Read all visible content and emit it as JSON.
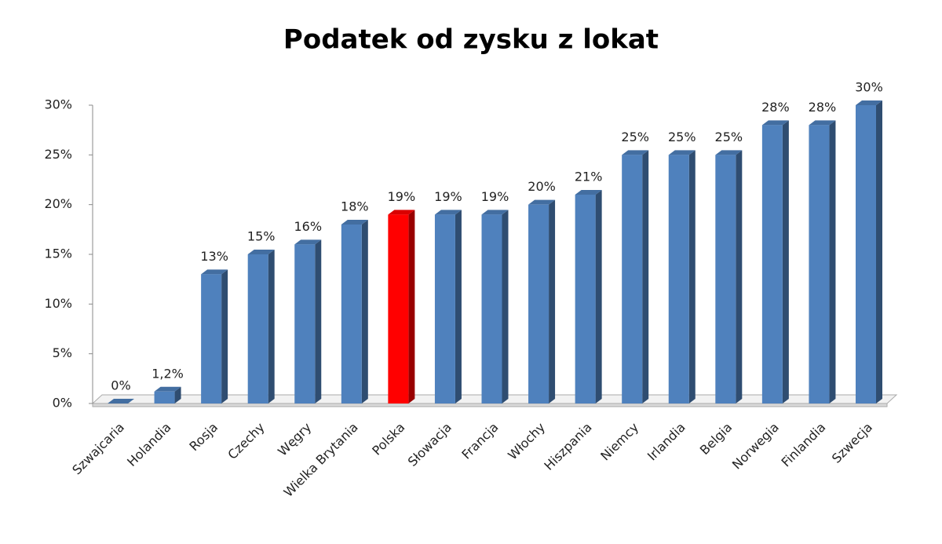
{
  "chart_data": {
    "type": "bar",
    "title": "Podatek od zysku z lokat",
    "categories": [
      "Szwajcaria",
      "Holandia",
      "Rosja",
      "Czechy",
      "Węgry",
      "Wielka Brytania",
      "Polska",
      "Słowacja",
      "Francja",
      "Włochy",
      "Hiszpania",
      "Niemcy",
      "Irlandia",
      "Belgia",
      "Norwegia",
      "Finlandia",
      "Szwecja"
    ],
    "values": [
      0,
      1.2,
      13,
      15,
      16,
      18,
      19,
      19,
      19,
      20,
      21,
      25,
      25,
      25,
      28,
      28,
      30
    ],
    "value_labels": [
      "0%",
      "1,2%",
      "13%",
      "15%",
      "16%",
      "18%",
      "19%",
      "19%",
      "19%",
      "20%",
      "21%",
      "25%",
      "25%",
      "25%",
      "28%",
      "28%",
      "30%"
    ],
    "colors": [
      "#4f81bd",
      "#4f81bd",
      "#4f81bd",
      "#4f81bd",
      "#4f81bd",
      "#4f81bd",
      "#ff0000",
      "#4f81bd",
      "#4f81bd",
      "#4f81bd",
      "#4f81bd",
      "#4f81bd",
      "#4f81bd",
      "#4f81bd",
      "#4f81bd",
      "#4f81bd",
      "#4f81bd"
    ],
    "ylim": [
      0,
      30
    ],
    "yticks": [
      {
        "value": 0,
        "label": "0%"
      },
      {
        "value": 5,
        "label": "5%"
      },
      {
        "value": 10,
        "label": "10%"
      },
      {
        "value": 15,
        "label": "15%"
      },
      {
        "value": 20,
        "label": "20%"
      },
      {
        "value": 25,
        "label": "25%"
      },
      {
        "value": 30,
        "label": "30%"
      }
    ],
    "grid": false
  }
}
